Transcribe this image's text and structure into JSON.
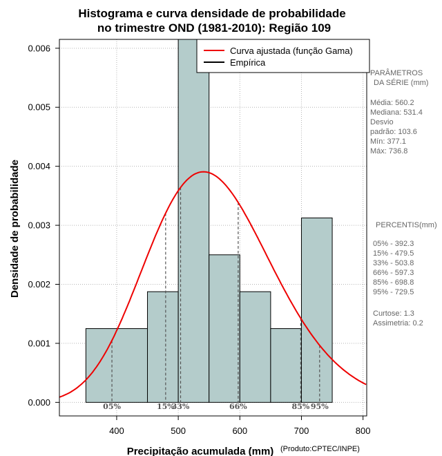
{
  "chart_data": {
    "type": "bar",
    "title_line1": "Histograma e curva densidade de probabilidade",
    "title_line2": "no trimestre OND (1981-2010): Região 109",
    "xlabel": "Precipitação acumulada (mm)",
    "ylabel": "Densidade de probabilidade",
    "credit": "(Produto:CPTEC/INPE)",
    "xlim": [
      307,
      806
    ],
    "ylim": [
      -0.00023,
      0.00615
    ],
    "x_ticks": [
      {
        "value": 400,
        "label": "400"
      },
      {
        "value": 500,
        "label": "500"
      },
      {
        "value": 600,
        "label": "600"
      },
      {
        "value": 700,
        "label": "700"
      },
      {
        "value": 800,
        "label": "800"
      }
    ],
    "y_ticks": [
      {
        "value": 0.0,
        "label": "0.000"
      },
      {
        "value": 0.001,
        "label": "0.001"
      },
      {
        "value": 0.002,
        "label": "0.002"
      },
      {
        "value": 0.003,
        "label": "0.003"
      },
      {
        "value": 0.004,
        "label": "0.004"
      },
      {
        "value": 0.005,
        "label": "0.005"
      },
      {
        "value": 0.006,
        "label": "0.006"
      }
    ],
    "grid": true,
    "bins": [
      {
        "from": 350,
        "to": 450,
        "density": 0.00125
      },
      {
        "from": 450,
        "to": 500,
        "density": 0.001875
      },
      {
        "from": 500,
        "to": 550,
        "density": 0.00625
      },
      {
        "from": 550,
        "to": 600,
        "density": 0.0025
      },
      {
        "from": 600,
        "to": 650,
        "density": 0.001875
      },
      {
        "from": 650,
        "to": 700,
        "density": 0.00125
      },
      {
        "from": 700,
        "to": 750,
        "density": 0.003125
      }
    ],
    "fitted_curve": {
      "name": "Curva ajustada (função Gama)",
      "color": "#ee0000",
      "distribution": "gamma",
      "mean": 560.2,
      "sd": 103.6
    },
    "empirical": {
      "name": "Empírica",
      "color": "#000000"
    },
    "legend_position": "top-right",
    "percentile_markers": [
      {
        "label": "05%",
        "value": 392.3
      },
      {
        "label": "15%",
        "value": 479.5
      },
      {
        "label": "33%",
        "value": 503.8
      },
      {
        "label": "66%",
        "value": 597.3
      },
      {
        "label": "85%",
        "value": 698.8
      },
      {
        "label": "95%",
        "value": 729.5
      }
    ],
    "bar_color": "#b4cccb"
  },
  "side_panel": {
    "params_title_1": "PARÂMETROS",
    "params_title_2": "DA SÉRIE (mm)",
    "params": [
      "Média:  560.2",
      "Mediana:  531.4",
      "Desvio",
      "padrão:  103.6",
      "Mín:  377.1",
      "Máx:  736.8"
    ],
    "percentis_title": "PERCENTIS(mm)",
    "percentis": [
      "05% -  392.3",
      "15% -  479.5",
      "33% -  503.8",
      "66% -  597.3",
      "85% -  698.8",
      "95% -  729.5"
    ],
    "curtose": "Curtose:  1.3",
    "assimetria": "Assimetria:  0.2"
  }
}
